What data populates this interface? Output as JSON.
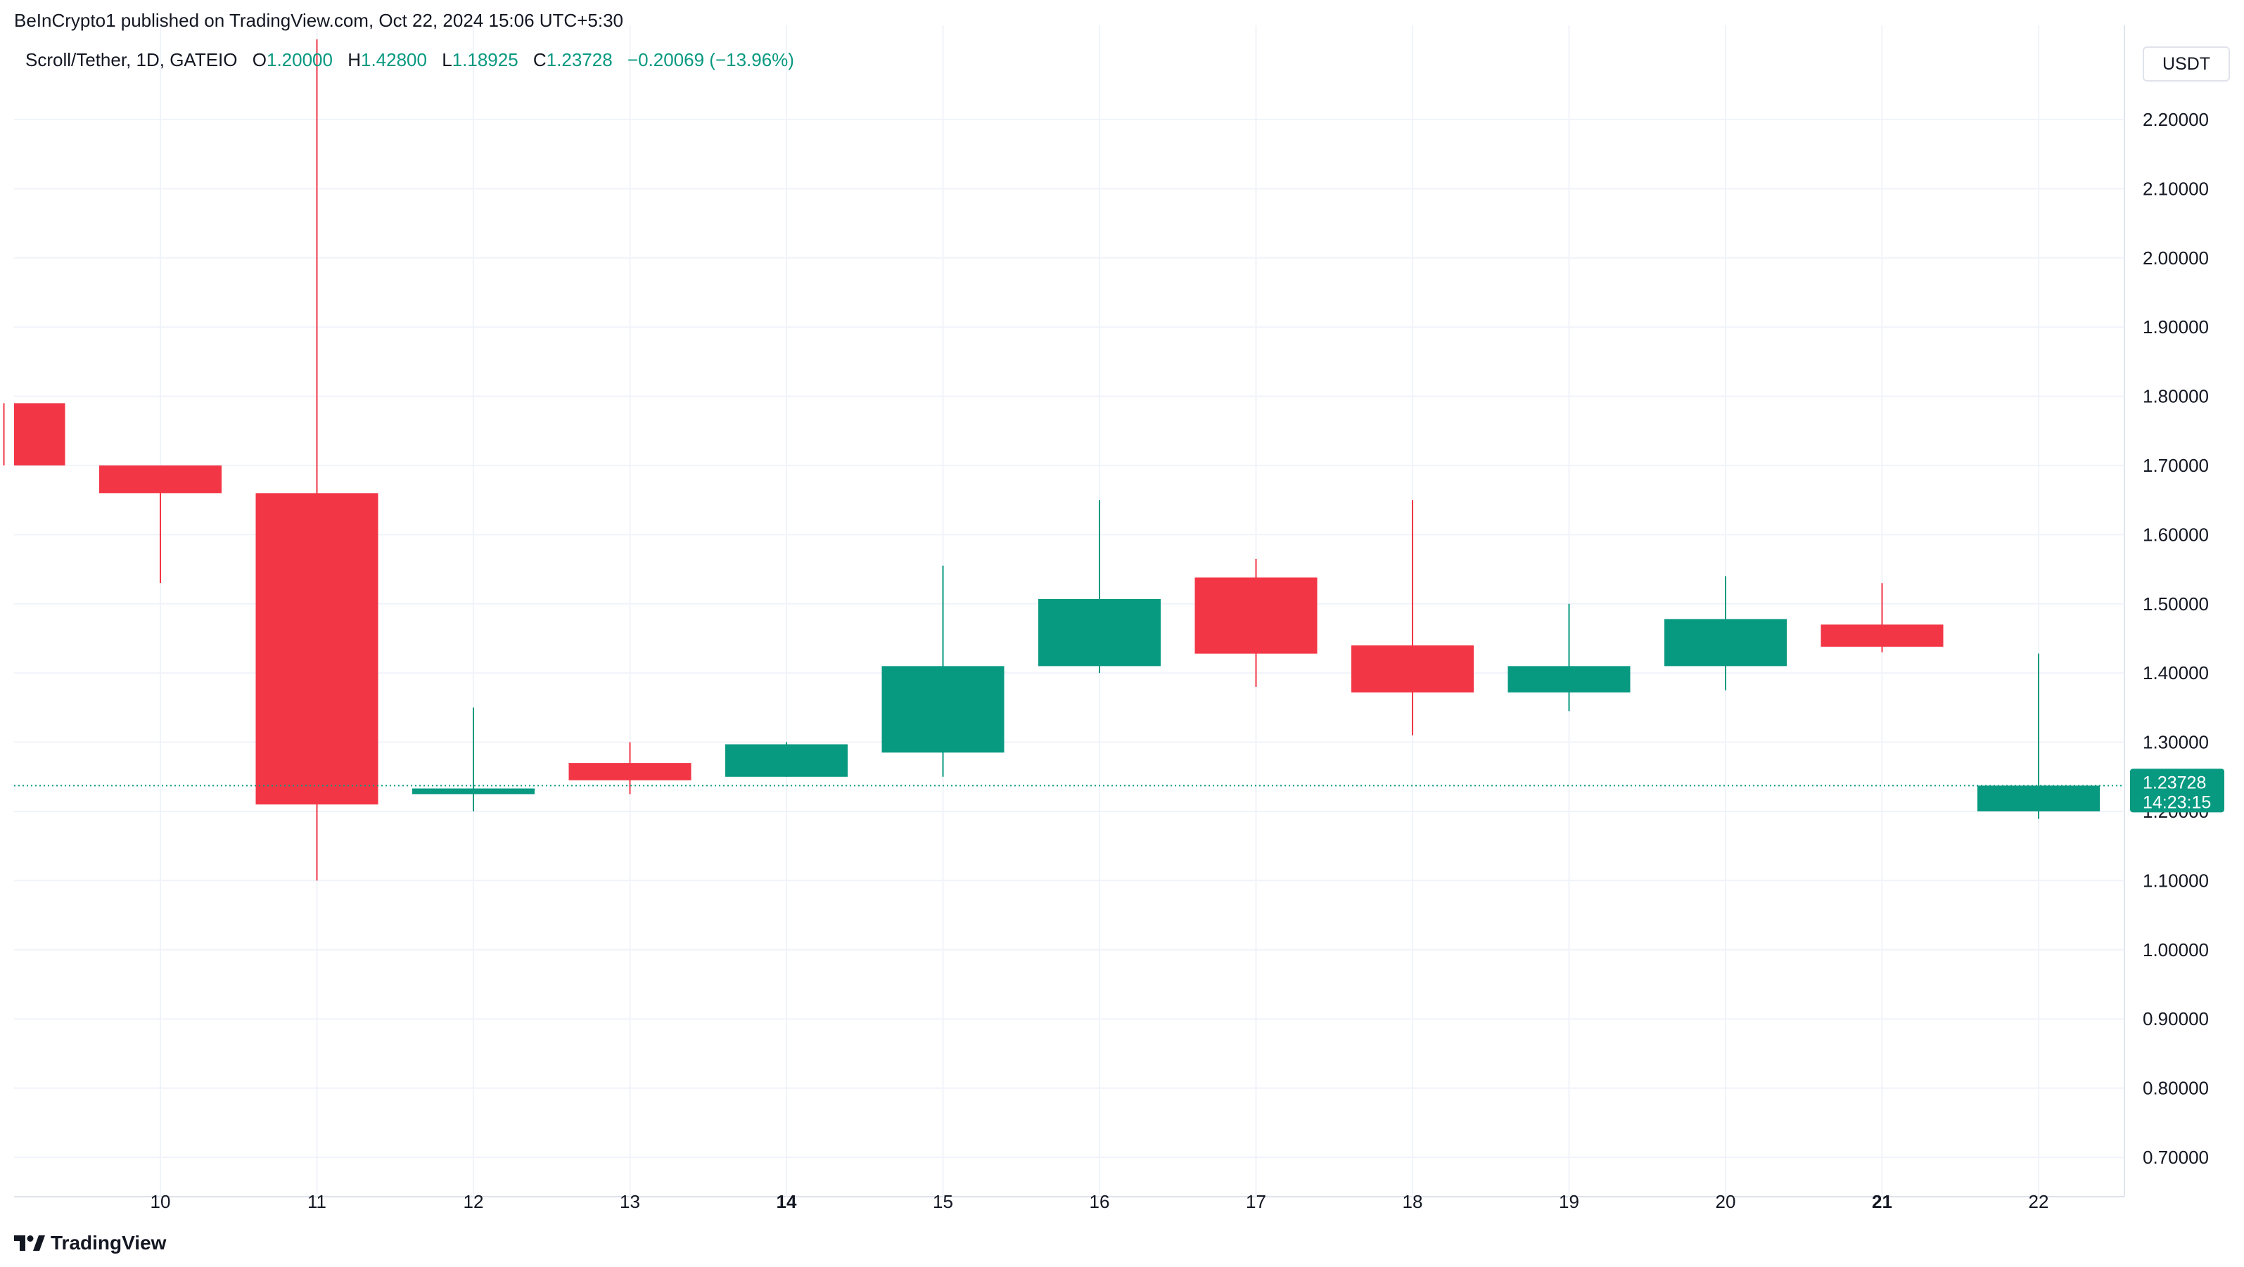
{
  "header": {
    "publisher_text": "BeInCrypto1 published on TradingView.com, Oct 22, 2024 15:06 UTC+5:30"
  },
  "legend": {
    "symbol": "Scroll/Tether, 1D, GATEIO",
    "open_label": "O",
    "open_value": "1.20000",
    "high_label": "H",
    "high_value": "1.42800",
    "low_label": "L",
    "low_value": "1.18925",
    "close_label": "C",
    "close_value": "1.23728",
    "change_value": "−0.20069 (−13.96%)"
  },
  "currency_button": "USDT",
  "price_tag": {
    "price": "1.23728",
    "countdown": "14:23:15"
  },
  "footer": {
    "brand": "TradingView",
    "logo_icon": "tradingview-logo-icon"
  },
  "colors": {
    "up": "#089981",
    "down": "#f23645",
    "grid": "#f0f3fa",
    "axis_text": "#131722"
  },
  "chart_data": {
    "type": "candlestick",
    "ylim": [
      0.65,
      2.3
    ],
    "y_ticks": [
      "0.70000",
      "0.80000",
      "0.90000",
      "1.00000",
      "1.10000",
      "1.20000",
      "1.30000",
      "1.40000",
      "1.50000",
      "1.60000",
      "1.70000",
      "1.80000",
      "1.90000",
      "2.00000",
      "2.10000",
      "2.20000"
    ],
    "x_ticks": [
      {
        "label": "10",
        "bold": false
      },
      {
        "label": "11",
        "bold": false
      },
      {
        "label": "12",
        "bold": false
      },
      {
        "label": "13",
        "bold": false
      },
      {
        "label": "14",
        "bold": true
      },
      {
        "label": "15",
        "bold": false
      },
      {
        "label": "16",
        "bold": false
      },
      {
        "label": "17",
        "bold": false
      },
      {
        "label": "18",
        "bold": false
      },
      {
        "label": "19",
        "bold": false
      },
      {
        "label": "20",
        "bold": false
      },
      {
        "label": "21",
        "bold": true
      },
      {
        "label": "22",
        "bold": false
      }
    ],
    "candles": [
      {
        "date": "9",
        "open": 1.79,
        "high": 1.79,
        "low": 1.7,
        "close": 1.7
      },
      {
        "date": "10",
        "open": 1.7,
        "high": 1.7,
        "low": 1.53,
        "close": 1.66
      },
      {
        "date": "11",
        "open": 1.66,
        "high": 2.36,
        "low": 1.1,
        "close": 1.21
      },
      {
        "date": "12",
        "open": 1.225,
        "high": 1.35,
        "low": 1.2,
        "close": 1.233
      },
      {
        "date": "13",
        "open": 1.27,
        "high": 1.3,
        "low": 1.225,
        "close": 1.245
      },
      {
        "date": "14",
        "open": 1.25,
        "high": 1.3,
        "low": 1.25,
        "close": 1.297
      },
      {
        "date": "15",
        "open": 1.285,
        "high": 1.555,
        "low": 1.25,
        "close": 1.41
      },
      {
        "date": "16",
        "open": 1.41,
        "high": 1.65,
        "low": 1.4,
        "close": 1.507
      },
      {
        "date": "17",
        "open": 1.538,
        "high": 1.565,
        "low": 1.38,
        "close": 1.428
      },
      {
        "date": "18",
        "open": 1.44,
        "high": 1.65,
        "low": 1.31,
        "close": 1.372
      },
      {
        "date": "19",
        "open": 1.372,
        "high": 1.5,
        "low": 1.345,
        "close": 1.41
      },
      {
        "date": "20",
        "open": 1.41,
        "high": 1.54,
        "low": 1.375,
        "close": 1.478
      },
      {
        "date": "21",
        "open": 1.47,
        "high": 1.53,
        "low": 1.43,
        "close": 1.438
      },
      {
        "date": "22",
        "open": 1.2,
        "high": 1.428,
        "low": 1.18925,
        "close": 1.23728
      }
    ],
    "last_price": 1.23728
  }
}
